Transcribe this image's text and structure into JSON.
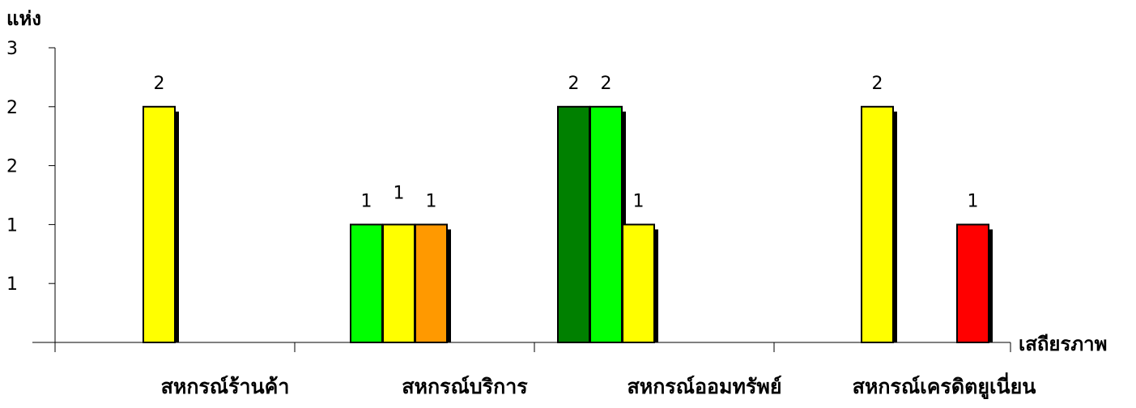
{
  "chart_data": {
    "type": "bar",
    "ylabel": "แห่ง",
    "xlabel": "เสถียรภาพ",
    "ylim": [
      0,
      2.5
    ],
    "y_ticks": [
      {
        "value": 0.5,
        "label": "1"
      },
      {
        "value": 1.0,
        "label": "1"
      },
      {
        "value": 1.5,
        "label": "2"
      },
      {
        "value": 2.0,
        "label": "2"
      },
      {
        "value": 2.5,
        "label": "3"
      }
    ],
    "categories": [
      "สหกรณ์ร้านค้า",
      "สหกรณ์บริการ",
      "สหกรณ์ออมทรัพย์",
      "สหกรณ์เครดิตยูเนี่ยน"
    ],
    "groups": [
      {
        "category": "สหกรณ์ร้านค้า",
        "bars": [
          {
            "slot": 3,
            "value": 2,
            "label": "2",
            "color": "#FFFF00"
          }
        ]
      },
      {
        "category": "สหกรณ์บริการ",
        "bars": [
          {
            "slot": 1,
            "value": 1,
            "label": "1",
            "color": "#00FF00"
          },
          {
            "slot": 2,
            "value": 1,
            "label": "1",
            "color": "#FFFF00"
          },
          {
            "slot": 3,
            "value": 1,
            "label": "1",
            "color": "#FF9900"
          }
        ]
      },
      {
        "category": "สหกรณ์ออมทรัพย์",
        "bars": [
          {
            "slot": 0,
            "value": 2,
            "label": "2",
            "color": "#008000"
          },
          {
            "slot": 1,
            "value": 2,
            "label": "2",
            "color": "#00FF00"
          },
          {
            "slot": 2,
            "value": 1,
            "label": "1",
            "color": "#FFFF00"
          }
        ]
      },
      {
        "category": "สหกรณ์เครดิตยูเนี่ยน",
        "bars": [
          {
            "slot": 0,
            "value": 2,
            "label": "2",
            "color": "#FFFF00"
          },
          {
            "slot": 3,
            "value": 1,
            "label": "1",
            "color": "#FF0000"
          }
        ]
      }
    ],
    "legend": "none",
    "grid": false
  }
}
